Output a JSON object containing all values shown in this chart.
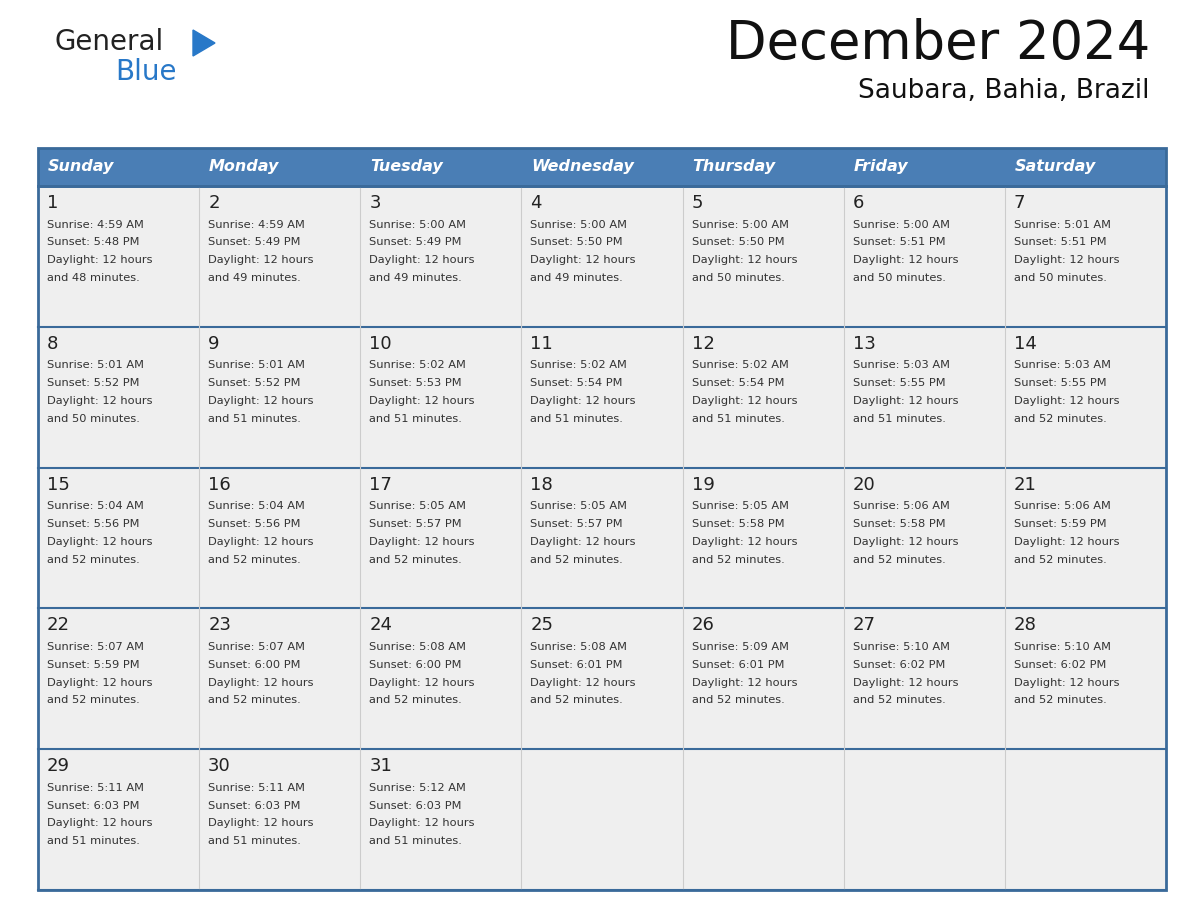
{
  "title": "December 2024",
  "subtitle": "Saubara, Bahia, Brazil",
  "header_bg_color": "#4a7eb5",
  "header_text_color": "#ffffff",
  "cell_bg_color": "#efefef",
  "border_color": "#3a6a9a",
  "row_divider_color": "#3a6a9a",
  "day_names": [
    "Sunday",
    "Monday",
    "Tuesday",
    "Wednesday",
    "Thursday",
    "Friday",
    "Saturday"
  ],
  "days": [
    {
      "day": 1,
      "col": 0,
      "row": 0,
      "sunrise": "4:59 AM",
      "sunset": "5:48 PM",
      "daylight_hours": 12,
      "daylight_minutes": 48
    },
    {
      "day": 2,
      "col": 1,
      "row": 0,
      "sunrise": "4:59 AM",
      "sunset": "5:49 PM",
      "daylight_hours": 12,
      "daylight_minutes": 49
    },
    {
      "day": 3,
      "col": 2,
      "row": 0,
      "sunrise": "5:00 AM",
      "sunset": "5:49 PM",
      "daylight_hours": 12,
      "daylight_minutes": 49
    },
    {
      "day": 4,
      "col": 3,
      "row": 0,
      "sunrise": "5:00 AM",
      "sunset": "5:50 PM",
      "daylight_hours": 12,
      "daylight_minutes": 49
    },
    {
      "day": 5,
      "col": 4,
      "row": 0,
      "sunrise": "5:00 AM",
      "sunset": "5:50 PM",
      "daylight_hours": 12,
      "daylight_minutes": 50
    },
    {
      "day": 6,
      "col": 5,
      "row": 0,
      "sunrise": "5:00 AM",
      "sunset": "5:51 PM",
      "daylight_hours": 12,
      "daylight_minutes": 50
    },
    {
      "day": 7,
      "col": 6,
      "row": 0,
      "sunrise": "5:01 AM",
      "sunset": "5:51 PM",
      "daylight_hours": 12,
      "daylight_minutes": 50
    },
    {
      "day": 8,
      "col": 0,
      "row": 1,
      "sunrise": "5:01 AM",
      "sunset": "5:52 PM",
      "daylight_hours": 12,
      "daylight_minutes": 50
    },
    {
      "day": 9,
      "col": 1,
      "row": 1,
      "sunrise": "5:01 AM",
      "sunset": "5:52 PM",
      "daylight_hours": 12,
      "daylight_minutes": 51
    },
    {
      "day": 10,
      "col": 2,
      "row": 1,
      "sunrise": "5:02 AM",
      "sunset": "5:53 PM",
      "daylight_hours": 12,
      "daylight_minutes": 51
    },
    {
      "day": 11,
      "col": 3,
      "row": 1,
      "sunrise": "5:02 AM",
      "sunset": "5:54 PM",
      "daylight_hours": 12,
      "daylight_minutes": 51
    },
    {
      "day": 12,
      "col": 4,
      "row": 1,
      "sunrise": "5:02 AM",
      "sunset": "5:54 PM",
      "daylight_hours": 12,
      "daylight_minutes": 51
    },
    {
      "day": 13,
      "col": 5,
      "row": 1,
      "sunrise": "5:03 AM",
      "sunset": "5:55 PM",
      "daylight_hours": 12,
      "daylight_minutes": 51
    },
    {
      "day": 14,
      "col": 6,
      "row": 1,
      "sunrise": "5:03 AM",
      "sunset": "5:55 PM",
      "daylight_hours": 12,
      "daylight_minutes": 52
    },
    {
      "day": 15,
      "col": 0,
      "row": 2,
      "sunrise": "5:04 AM",
      "sunset": "5:56 PM",
      "daylight_hours": 12,
      "daylight_minutes": 52
    },
    {
      "day": 16,
      "col": 1,
      "row": 2,
      "sunrise": "5:04 AM",
      "sunset": "5:56 PM",
      "daylight_hours": 12,
      "daylight_minutes": 52
    },
    {
      "day": 17,
      "col": 2,
      "row": 2,
      "sunrise": "5:05 AM",
      "sunset": "5:57 PM",
      "daylight_hours": 12,
      "daylight_minutes": 52
    },
    {
      "day": 18,
      "col": 3,
      "row": 2,
      "sunrise": "5:05 AM",
      "sunset": "5:57 PM",
      "daylight_hours": 12,
      "daylight_minutes": 52
    },
    {
      "day": 19,
      "col": 4,
      "row": 2,
      "sunrise": "5:05 AM",
      "sunset": "5:58 PM",
      "daylight_hours": 12,
      "daylight_minutes": 52
    },
    {
      "day": 20,
      "col": 5,
      "row": 2,
      "sunrise": "5:06 AM",
      "sunset": "5:58 PM",
      "daylight_hours": 12,
      "daylight_minutes": 52
    },
    {
      "day": 21,
      "col": 6,
      "row": 2,
      "sunrise": "5:06 AM",
      "sunset": "5:59 PM",
      "daylight_hours": 12,
      "daylight_minutes": 52
    },
    {
      "day": 22,
      "col": 0,
      "row": 3,
      "sunrise": "5:07 AM",
      "sunset": "5:59 PM",
      "daylight_hours": 12,
      "daylight_minutes": 52
    },
    {
      "day": 23,
      "col": 1,
      "row": 3,
      "sunrise": "5:07 AM",
      "sunset": "6:00 PM",
      "daylight_hours": 12,
      "daylight_minutes": 52
    },
    {
      "day": 24,
      "col": 2,
      "row": 3,
      "sunrise": "5:08 AM",
      "sunset": "6:00 PM",
      "daylight_hours": 12,
      "daylight_minutes": 52
    },
    {
      "day": 25,
      "col": 3,
      "row": 3,
      "sunrise": "5:08 AM",
      "sunset": "6:01 PM",
      "daylight_hours": 12,
      "daylight_minutes": 52
    },
    {
      "day": 26,
      "col": 4,
      "row": 3,
      "sunrise": "5:09 AM",
      "sunset": "6:01 PM",
      "daylight_hours": 12,
      "daylight_minutes": 52
    },
    {
      "day": 27,
      "col": 5,
      "row": 3,
      "sunrise": "5:10 AM",
      "sunset": "6:02 PM",
      "daylight_hours": 12,
      "daylight_minutes": 52
    },
    {
      "day": 28,
      "col": 6,
      "row": 3,
      "sunrise": "5:10 AM",
      "sunset": "6:02 PM",
      "daylight_hours": 12,
      "daylight_minutes": 52
    },
    {
      "day": 29,
      "col": 0,
      "row": 4,
      "sunrise": "5:11 AM",
      "sunset": "6:03 PM",
      "daylight_hours": 12,
      "daylight_minutes": 51
    },
    {
      "day": 30,
      "col": 1,
      "row": 4,
      "sunrise": "5:11 AM",
      "sunset": "6:03 PM",
      "daylight_hours": 12,
      "daylight_minutes": 51
    },
    {
      "day": 31,
      "col": 2,
      "row": 4,
      "sunrise": "5:12 AM",
      "sunset": "6:03 PM",
      "daylight_hours": 12,
      "daylight_minutes": 51
    }
  ],
  "num_rows": 5,
  "logo_general_color": "#222222",
  "logo_blue_color": "#2878c8",
  "logo_triangle_color": "#2878c8"
}
